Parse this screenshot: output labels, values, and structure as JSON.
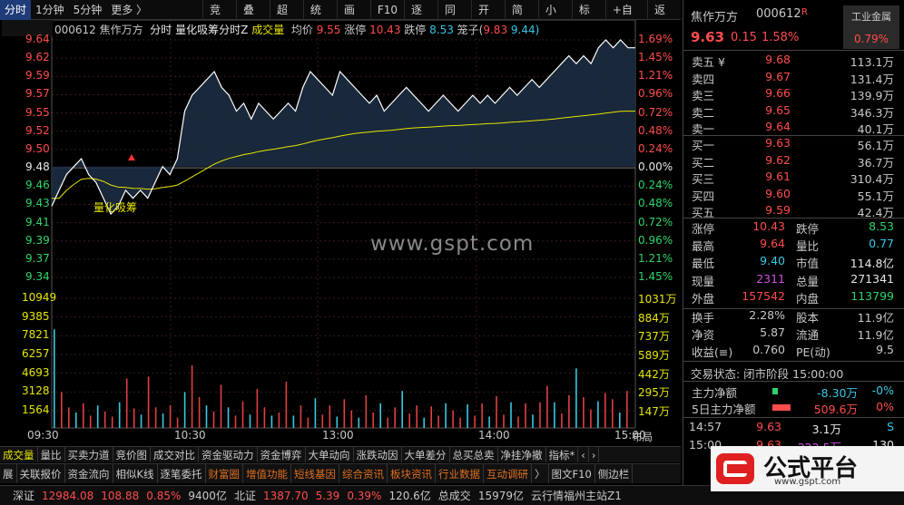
{
  "toolbar": {
    "periods": [
      "分时",
      "1分钟",
      "5分钟",
      "更多 〉"
    ],
    "actions": [
      "竞价",
      "叠加",
      "超盘",
      "统计",
      "画线",
      "F10",
      "逐分",
      "同资",
      "开资",
      "简框",
      "小窗",
      "标记",
      "+自选",
      "返回"
    ]
  },
  "chart_header": {
    "code": "000612",
    "name": "焦作万方",
    "mode": "分时",
    "indicator": "量化吸筹分时Z",
    "vol_label": "成交量",
    "avg_label": "均价",
    "avg": "9.55",
    "limit_up_label": "涨停",
    "limit_up": "10.43",
    "limit_down_label": "跌停",
    "limit_down": "8.53",
    "box_label": "笼子(",
    "box_hi": "9.83",
    "box_lo": "9.44)"
  },
  "price_axis": [
    "9.64",
    "9.62",
    "9.59",
    "9.57",
    "9.55",
    "9.52",
    "9.50",
    "9.48",
    "9.46",
    "9.43",
    "9.41",
    "9.39",
    "9.37",
    "9.34"
  ],
  "pct_axis": [
    "1.69%",
    "1.45%",
    "1.21%",
    "0.96%",
    "0.72%",
    "0.48%",
    "0.24%",
    "0.00%",
    "0.24%",
    "0.48%",
    "0.72%",
    "0.96%",
    "1.21%",
    "1.45%"
  ],
  "vol_axis_left": [
    "10949",
    "9385",
    "7821",
    "6257",
    "4693",
    "3128",
    "1564"
  ],
  "vol_axis_right": [
    "1031万",
    "884万",
    "737万",
    "589万",
    "442万",
    "295万",
    "147万"
  ],
  "time_axis": [
    "09:30",
    "10:30",
    "13:00",
    "14:00",
    "15:00"
  ],
  "watermark": "www.gspt.com",
  "annotation": "量化吸筹",
  "right_corner_btn": "布局",
  "tabs1": [
    "成交量",
    "量比",
    "买卖力道",
    "竞价图",
    "成交对比",
    "资金驱动力",
    "资金博弈",
    "大单动向",
    "涨跌动因",
    "大单差分",
    "总买总卖",
    "净挂净撤",
    "指标*",
    "‹",
    "›"
  ],
  "tabs2": [
    "展",
    "关联报价",
    "资金流向",
    "相似K线",
    "逐笔委托",
    "财富圈",
    "增值功能",
    "短线基因",
    "综合资讯",
    "板块资讯",
    "行业数据",
    "互动调研",
    "〉",
    "图文F10",
    "侧边栏"
  ],
  "status": {
    "sz_label": "深证",
    "sz_val": "12984.08",
    "sz_chg": "108.88",
    "sz_pct": "0.85%",
    "sz_amt": "9400亿",
    "bz_label": "北证",
    "bz_val": "1387.70",
    "bz_chg": "5.39",
    "bz_pct": "0.39%",
    "bz_amt": "120.6亿",
    "total_label": "总成交",
    "total_val": "15979亿",
    "site": "云行情福州主站Z1"
  },
  "stock": {
    "name": "焦作万方",
    "code": "000612",
    "badge": "R",
    "sector": "工业金属",
    "price": "9.63",
    "change": "0.15",
    "pct": "1.58%",
    "sector_pct": "0.79%"
  },
  "sell": [
    {
      "label": "卖五 ¥",
      "price": "9.68",
      "vol": "113.1万"
    },
    {
      "label": "卖四",
      "price": "9.67",
      "vol": "131.4万"
    },
    {
      "label": "卖三",
      "price": "9.66",
      "vol": "139.9万"
    },
    {
      "label": "卖二",
      "price": "9.65",
      "vol": "346.3万"
    },
    {
      "label": "卖一",
      "price": "9.64",
      "vol": "40.1万"
    }
  ],
  "buy": [
    {
      "label": "买一",
      "price": "9.63",
      "vol": "56.1万"
    },
    {
      "label": "买二",
      "price": "9.62",
      "vol": "36.7万"
    },
    {
      "label": "买三",
      "price": "9.61",
      "vol": "310.4万"
    },
    {
      "label": "买四",
      "price": "9.60",
      "vol": "55.1万"
    },
    {
      "label": "买五",
      "price": "9.59",
      "vol": "42.4万"
    }
  ],
  "stats": [
    {
      "k1": "涨停",
      "v1": "10.43",
      "c1": "red",
      "k2": "跌停",
      "v2": "8.53",
      "c2": "grn"
    },
    {
      "k1": "最高",
      "v1": "9.64",
      "c1": "red",
      "k2": "量比",
      "v2": "0.77",
      "c2": "cyan"
    },
    {
      "k1": "最低",
      "v1": "9.40",
      "c1": "cyan",
      "k2": "市值",
      "v2": "114.8亿",
      "c2": "wht"
    },
    {
      "k1": "现量",
      "v1": "2311",
      "c1": "pur",
      "k2": "总量",
      "v2": "271341",
      "c2": "wht"
    },
    {
      "k1": "外盘",
      "v1": "157542",
      "c1": "red",
      "k2": "内盘",
      "v2": "113799",
      "c2": "grn"
    }
  ],
  "stats2": [
    {
      "k1": "换手",
      "v1": "2.28%",
      "k2": "股本",
      "v2": "11.9亿"
    },
    {
      "k1": "净资",
      "v1": "5.87",
      "k2": "流通",
      "v2": "11.9亿"
    },
    {
      "k1": "收益(≡)",
      "v1": "0.760",
      "k2": "PE(动)",
      "v2": "9.5"
    }
  ],
  "trade_status": "交易状态: 闭市阶段 15:00:00",
  "flow": [
    {
      "label": "主力净额",
      "val": "-8.30万",
      "pct": "-0%"
    },
    {
      "label": "5日主力净额",
      "val": "509.6万",
      "pct": "0%"
    }
  ],
  "ticks": [
    {
      "t": "14:57",
      "p": "9.63",
      "v": "3.1万",
      "s": "S"
    },
    {
      "t": "15:00",
      "p": "9.63",
      "v": "222.5万",
      "s": "130"
    }
  ],
  "logo_text": "公式平台",
  "logo_url": "www.gspt.com",
  "chart_data": {
    "type": "line",
    "x": [
      "09:30",
      "10:30",
      "13:00",
      "14:00",
      "15:00"
    ],
    "price_range": [
      9.34,
      9.64
    ],
    "prev_close": 9.48,
    "series": [
      {
        "name": "分时",
        "color": "#ffffff"
      },
      {
        "name": "均价",
        "color": "#e6e600"
      }
    ]
  }
}
